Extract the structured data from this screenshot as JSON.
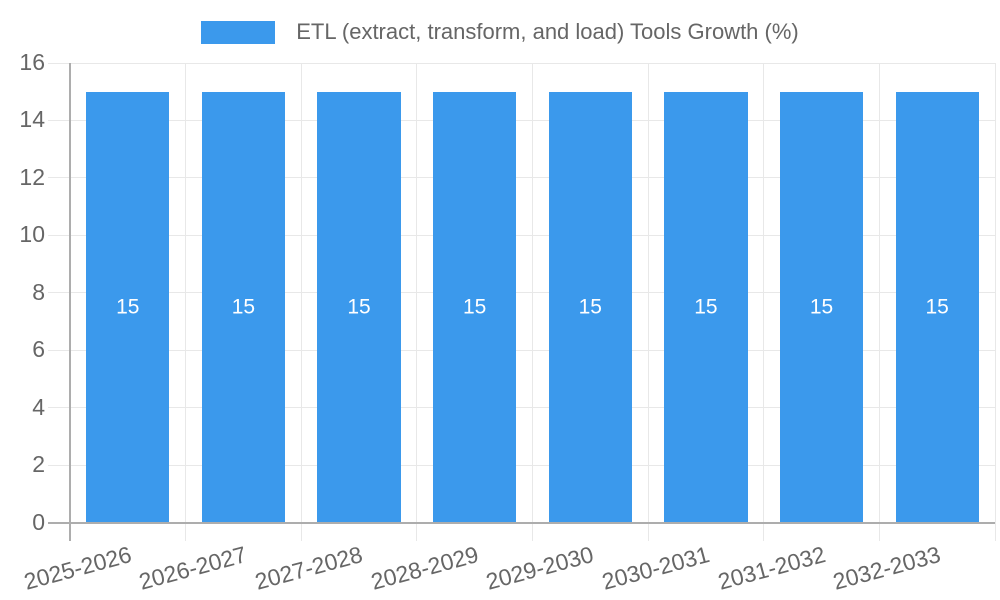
{
  "legend": {
    "label": "ETL (extract, transform, and load) Tools Growth (%)"
  },
  "chart_data": {
    "type": "bar",
    "title": "ETL (extract, transform, and load) Tools Growth (%)",
    "categories": [
      "2025-2026",
      "2026-2027",
      "2027-2028",
      "2028-2029",
      "2029-2030",
      "2030-2031",
      "2031-2032",
      "2032-2033"
    ],
    "series": [
      {
        "name": "ETL (extract, transform, and load) Tools Growth (%)",
        "values": [
          15,
          15,
          15,
          15,
          15,
          15,
          15,
          15
        ]
      }
    ],
    "bar_labels": [
      "15",
      "15",
      "15",
      "15",
      "15",
      "15",
      "15",
      "15"
    ],
    "xlabel": "",
    "ylabel": "",
    "ylim": [
      0,
      16
    ],
    "yticks": [
      0,
      2,
      4,
      6,
      8,
      10,
      12,
      14,
      16
    ],
    "grid": true,
    "legend_position": "top",
    "x_label_rotation_deg": -15
  },
  "colors": {
    "bar": "#3B99EC",
    "grid": "#e8e8e8",
    "axis": "#adadad",
    "tick_text": "#666666",
    "legend_text": "#666666",
    "bar_label_text": "#ffffff",
    "background": "#ffffff"
  }
}
